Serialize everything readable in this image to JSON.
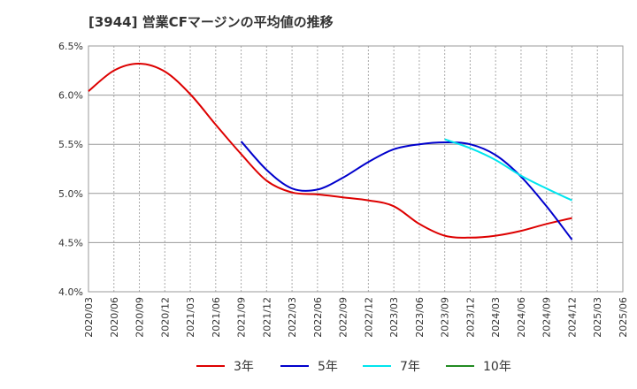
{
  "chart_data": {
    "type": "line",
    "title": "[3944]  営業CFマージンの平均値の推移",
    "xlabel": "",
    "ylabel": "",
    "ylim": [
      4.0,
      6.5
    ],
    "x_ticks": [
      "2020/03",
      "2020/06",
      "2020/09",
      "2020/12",
      "2021/03",
      "2021/06",
      "2021/09",
      "2021/12",
      "2022/03",
      "2022/06",
      "2022/09",
      "2022/12",
      "2023/03",
      "2023/06",
      "2023/09",
      "2023/12",
      "2024/03",
      "2024/06",
      "2024/09",
      "2024/12",
      "2025/03",
      "2025/06"
    ],
    "y_ticks": [
      "4.0%",
      "4.5%",
      "5.0%",
      "5.5%",
      "6.0%",
      "6.5%"
    ],
    "y_tick_values": [
      4.0,
      4.5,
      5.0,
      5.5,
      6.0,
      6.5
    ],
    "grid": true,
    "legend_position": "bottom",
    "series": [
      {
        "name": "3年",
        "color": "#dd0000",
        "points": [
          [
            "2020/03",
            6.04
          ],
          [
            "2020/06",
            6.25
          ],
          [
            "2020/09",
            6.32
          ],
          [
            "2020/12",
            6.24
          ],
          [
            "2021/03",
            6.01
          ],
          [
            "2021/06",
            5.7
          ],
          [
            "2021/09",
            5.4
          ],
          [
            "2021/12",
            5.13
          ],
          [
            "2022/03",
            5.01
          ],
          [
            "2022/06",
            4.99
          ],
          [
            "2022/09",
            4.96
          ],
          [
            "2022/12",
            4.93
          ],
          [
            "2023/03",
            4.87
          ],
          [
            "2023/06",
            4.69
          ],
          [
            "2023/09",
            4.57
          ],
          [
            "2023/12",
            4.55
          ],
          [
            "2024/03",
            4.57
          ],
          [
            "2024/06",
            4.62
          ],
          [
            "2024/09",
            4.69
          ],
          [
            "2024/12",
            4.75
          ]
        ]
      },
      {
        "name": "5年",
        "color": "#0000cc",
        "points": [
          [
            "2021/09",
            5.53
          ],
          [
            "2021/12",
            5.24
          ],
          [
            "2022/03",
            5.05
          ],
          [
            "2022/06",
            5.04
          ],
          [
            "2022/09",
            5.16
          ],
          [
            "2022/12",
            5.32
          ],
          [
            "2023/03",
            5.45
          ],
          [
            "2023/06",
            5.5
          ],
          [
            "2023/09",
            5.52
          ],
          [
            "2023/12",
            5.5
          ],
          [
            "2024/03",
            5.39
          ],
          [
            "2024/06",
            5.17
          ],
          [
            "2024/09",
            4.87
          ],
          [
            "2024/12",
            4.53
          ]
        ]
      },
      {
        "name": "7年",
        "color": "#00e5ee",
        "points": [
          [
            "2023/09",
            5.55
          ],
          [
            "2023/12",
            5.46
          ],
          [
            "2024/03",
            5.34
          ],
          [
            "2024/06",
            5.18
          ],
          [
            "2024/09",
            5.05
          ],
          [
            "2024/12",
            4.93
          ]
        ]
      },
      {
        "name": "10年",
        "color": "#228b22",
        "points": []
      }
    ]
  }
}
